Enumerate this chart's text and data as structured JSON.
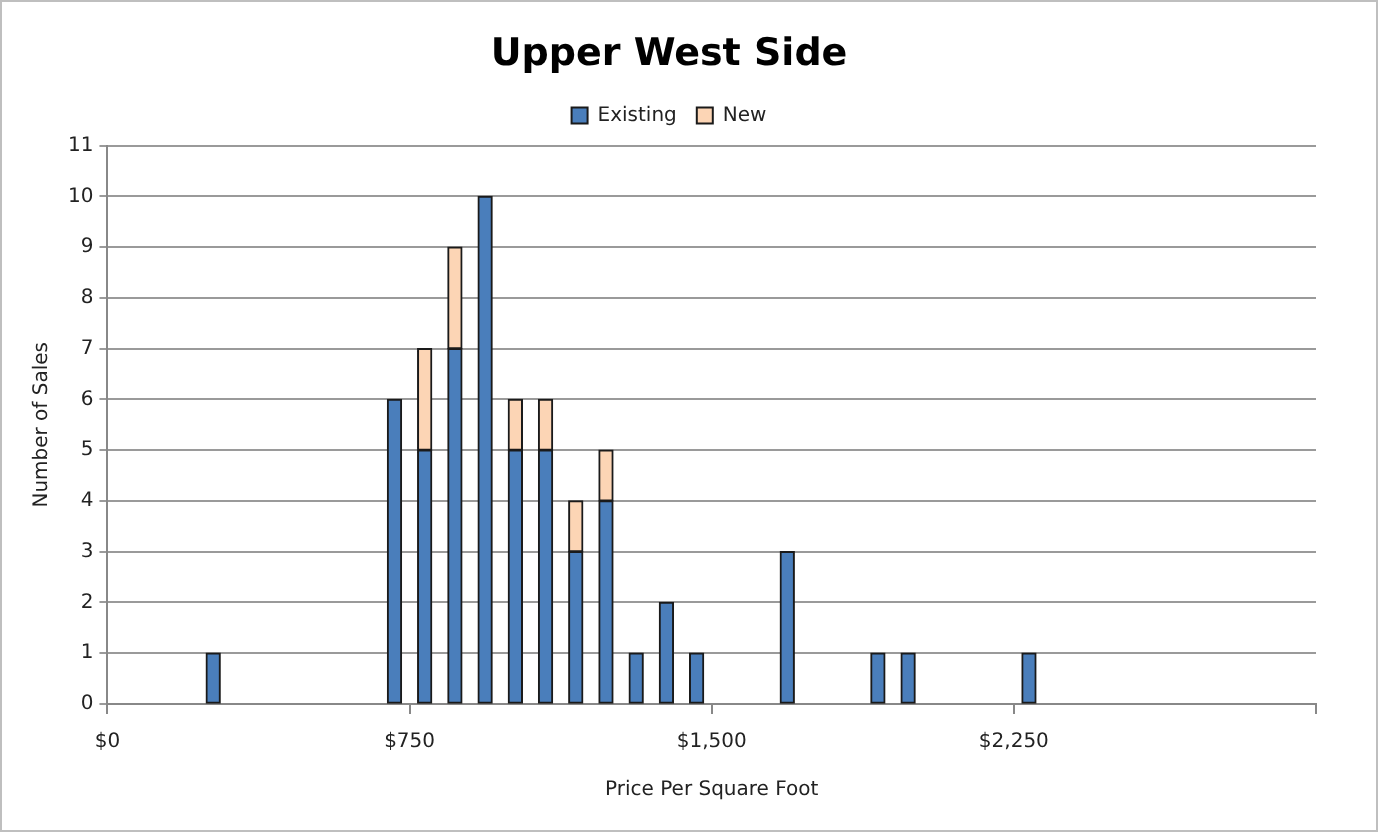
{
  "chart_data": {
    "type": "bar",
    "title": "Upper West Side",
    "xlabel": "Price Per Square Foot",
    "ylabel": "Number of Sales",
    "x": [
      262.5,
      712.5,
      787.5,
      862.5,
      937.5,
      1012.5,
      1087.5,
      1162.5,
      1237.5,
      1312.5,
      1387.5,
      1462.5,
      1687.5,
      1912.5,
      1987.5,
      2287.5
    ],
    "series": [
      {
        "name": "Existing",
        "color": "#4a7ebb",
        "values": [
          1,
          6,
          5,
          7,
          10,
          5,
          5,
          3,
          4,
          1,
          2,
          1,
          3,
          1,
          1,
          1
        ]
      },
      {
        "name": "New",
        "color": "#fcd5b5",
        "values": [
          0,
          0,
          2,
          2,
          0,
          1,
          1,
          1,
          1,
          0,
          0,
          0,
          0,
          0,
          0,
          0
        ]
      }
    ],
    "stacked": true,
    "xlim": [
      0,
      3000
    ],
    "xticks": [
      {
        "value": 0,
        "label": "$0"
      },
      {
        "value": 750,
        "label": "$750"
      },
      {
        "value": 1500,
        "label": "$1,500"
      },
      {
        "value": 2250,
        "label": "$2,250"
      },
      {
        "value": 3000,
        "label": null
      }
    ],
    "ylim": [
      0,
      11
    ],
    "yticks": [
      0,
      1,
      2,
      3,
      4,
      5,
      6,
      7,
      8,
      9,
      10,
      11
    ],
    "grid": "y",
    "legend": "top"
  }
}
